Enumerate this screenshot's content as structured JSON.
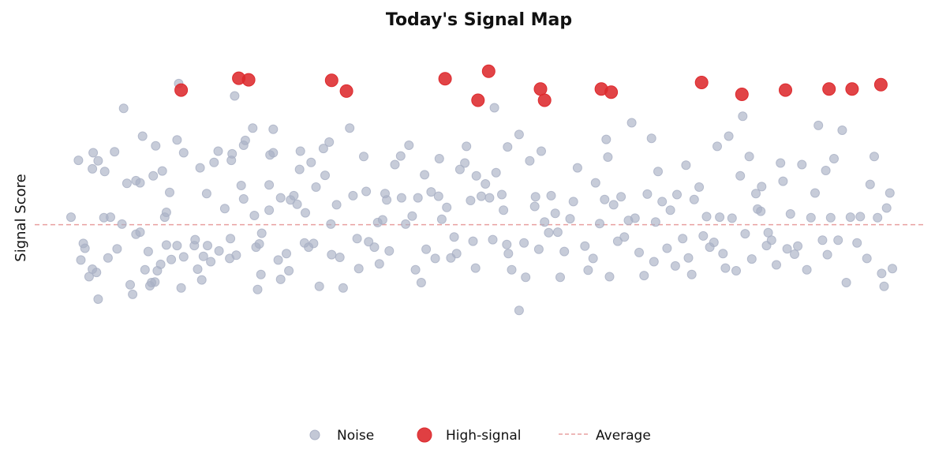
{
  "chart_data": {
    "type": "scatter",
    "title": "Today's Signal Map",
    "xlabel": "",
    "ylabel": "Signal Score",
    "xlim": [
      0,
      100
    ],
    "ylim": [
      -3.2,
      3.6
    ],
    "grid": false,
    "legend_placement": "bottom-center",
    "average": 0.0,
    "colors": {
      "noise": "#a9b0c4",
      "high_signal": "#dd2a2e",
      "average_line": "#e8a0a0"
    },
    "legend": [
      {
        "key": "noise",
        "label": "Noise"
      },
      {
        "key": "high_signal",
        "label": "High-signal"
      },
      {
        "key": "average",
        "label": "Average"
      }
    ],
    "series": [
      {
        "name": "High-signal",
        "points": [
          [
            13.4,
            2.51
          ],
          [
            20.4,
            2.73
          ],
          [
            21.6,
            2.7
          ],
          [
            31.7,
            2.69
          ],
          [
            33.5,
            2.49
          ],
          [
            45.5,
            2.72
          ],
          [
            49.5,
            2.32
          ],
          [
            50.8,
            2.86
          ],
          [
            57.1,
            2.53
          ],
          [
            57.6,
            2.32
          ],
          [
            64.5,
            2.53
          ],
          [
            65.7,
            2.47
          ],
          [
            76.7,
            2.65
          ],
          [
            81.6,
            2.43
          ],
          [
            86.9,
            2.51
          ],
          [
            92.2,
            2.53
          ],
          [
            95.0,
            2.53
          ],
          [
            98.5,
            2.61
          ]
        ]
      },
      {
        "name": "Noise",
        "points": [
          [
            0.0,
            0.14
          ],
          [
            0.9,
            1.2
          ],
          [
            1.2,
            -0.66
          ],
          [
            1.5,
            -0.35
          ],
          [
            1.7,
            -0.44
          ],
          [
            2.2,
            -0.97
          ],
          [
            2.6,
            -0.83
          ],
          [
            2.6,
            1.04
          ],
          [
            2.7,
            1.34
          ],
          [
            3.1,
            -0.89
          ],
          [
            3.3,
            1.19
          ],
          [
            3.3,
            -1.39
          ],
          [
            4.0,
            0.13
          ],
          [
            4.1,
            0.99
          ],
          [
            4.5,
            -0.62
          ],
          [
            4.8,
            0.14
          ],
          [
            5.3,
            1.36
          ],
          [
            5.6,
            -0.45
          ],
          [
            6.2,
            0.01
          ],
          [
            6.4,
            2.17
          ],
          [
            6.8,
            0.77
          ],
          [
            7.2,
            -1.12
          ],
          [
            7.5,
            -1.3
          ],
          [
            7.9,
            -0.18
          ],
          [
            7.9,
            0.82
          ],
          [
            8.4,
            0.78
          ],
          [
            8.7,
            1.65
          ],
          [
            9.0,
            -0.84
          ],
          [
            9.4,
            -0.5
          ],
          [
            9.6,
            -1.14
          ],
          [
            9.8,
            -1.08
          ],
          [
            10.0,
            0.91
          ],
          [
            10.2,
            -1.07
          ],
          [
            10.3,
            1.47
          ],
          [
            10.5,
            -0.86
          ],
          [
            10.9,
            -0.74
          ],
          [
            11.1,
            1.0
          ],
          [
            11.4,
            0.14
          ],
          [
            11.6,
            -0.38
          ],
          [
            11.6,
            0.23
          ],
          [
            12.0,
            0.6
          ],
          [
            12.2,
            -0.65
          ],
          [
            12.9,
            1.58
          ],
          [
            12.9,
            -0.39
          ],
          [
            13.1,
            2.63
          ],
          [
            13.4,
            -1.18
          ],
          [
            13.7,
            1.34
          ],
          [
            13.7,
            -0.6
          ],
          [
            15.0,
            -0.39
          ],
          [
            15.1,
            -0.28
          ],
          [
            15.4,
            -0.83
          ],
          [
            15.7,
            1.06
          ],
          [
            15.9,
            -1.03
          ],
          [
            16.1,
            -0.59
          ],
          [
            16.5,
            0.58
          ],
          [
            16.6,
            -0.39
          ],
          [
            17.0,
            -0.69
          ],
          [
            17.4,
            1.16
          ],
          [
            18.0,
            -0.49
          ],
          [
            18.7,
            0.3
          ],
          [
            19.3,
            -0.63
          ],
          [
            19.4,
            -0.26
          ],
          [
            19.5,
            1.2
          ],
          [
            19.6,
            1.32
          ],
          [
            19.9,
            2.4
          ],
          [
            20.1,
            -0.57
          ],
          [
            20.7,
            0.73
          ],
          [
            21.0,
            0.48
          ],
          [
            21.0,
            1.48
          ],
          [
            21.2,
            1.57
          ],
          [
            22.1,
            1.8
          ],
          [
            22.3,
            0.17
          ],
          [
            22.5,
            -0.42
          ],
          [
            22.7,
            -1.21
          ],
          [
            22.9,
            -0.36
          ],
          [
            23.1,
            -0.93
          ],
          [
            23.2,
            -0.16
          ],
          [
            24.1,
            0.27
          ],
          [
            24.1,
            0.74
          ],
          [
            24.2,
            1.3
          ],
          [
            24.6,
            1.78
          ],
          [
            24.6,
            1.34
          ],
          [
            25.2,
            -0.66
          ],
          [
            25.5,
            -1.02
          ],
          [
            25.5,
            0.5
          ],
          [
            26.2,
            -0.54
          ],
          [
            26.5,
            -0.86
          ],
          [
            26.7,
            0.46
          ],
          [
            27.1,
            0.54
          ],
          [
            27.5,
            0.38
          ],
          [
            27.9,
            1.37
          ],
          [
            28.4,
            -0.34
          ],
          [
            28.5,
            0.22
          ],
          [
            28.9,
            -0.42
          ],
          [
            29.2,
            1.16
          ],
          [
            29.5,
            -0.35
          ],
          [
            29.8,
            0.7
          ],
          [
            30.2,
            -1.15
          ],
          [
            30.7,
            1.42
          ],
          [
            30.9,
            0.92
          ],
          [
            31.4,
            1.54
          ],
          [
            31.6,
            0.01
          ],
          [
            31.7,
            -0.56
          ],
          [
            32.3,
            0.37
          ],
          [
            32.7,
            -0.61
          ],
          [
            33.1,
            -1.18
          ],
          [
            33.9,
            1.8
          ],
          [
            34.3,
            0.54
          ],
          [
            34.8,
            -0.26
          ],
          [
            35.0,
            -0.82
          ],
          [
            35.6,
            1.27
          ],
          [
            35.9,
            0.62
          ],
          [
            36.2,
            -0.32
          ],
          [
            37.3,
            0.04
          ],
          [
            37.5,
            -0.73
          ],
          [
            37.9,
            0.09
          ],
          [
            38.2,
            0.58
          ],
          [
            38.4,
            0.46
          ],
          [
            38.7,
            -0.49
          ],
          [
            39.4,
            1.12
          ],
          [
            40.1,
            1.28
          ],
          [
            40.2,
            0.5
          ],
          [
            40.7,
            0.01
          ],
          [
            41.1,
            1.48
          ],
          [
            41.5,
            0.16
          ],
          [
            41.9,
            -0.84
          ],
          [
            42.2,
            0.5
          ],
          [
            42.6,
            -1.08
          ],
          [
            43.0,
            0.93
          ],
          [
            43.2,
            -0.46
          ],
          [
            43.8,
            0.61
          ],
          [
            44.3,
            -0.63
          ],
          [
            44.7,
            0.53
          ],
          [
            44.8,
            1.23
          ],
          [
            45.1,
            0.1
          ],
          [
            45.7,
            0.32
          ],
          [
            46.2,
            -0.62
          ],
          [
            46.9,
            -0.54
          ],
          [
            47.3,
            1.03
          ],
          [
            47.9,
            1.15
          ],
          [
            48.1,
            1.46
          ],
          [
            48.6,
            0.45
          ],
          [
            48.9,
            -0.31
          ],
          [
            49.2,
            -0.81
          ],
          [
            49.3,
            0.91
          ],
          [
            49.9,
            0.53
          ],
          [
            50.4,
            0.76
          ],
          [
            50.9,
            0.5
          ],
          [
            51.3,
            -0.28
          ],
          [
            51.5,
            2.18
          ],
          [
            51.7,
            0.97
          ],
          [
            52.4,
            0.56
          ],
          [
            52.6,
            0.27
          ],
          [
            53.1,
            1.45
          ],
          [
            53.2,
            -0.54
          ],
          [
            53.6,
            -0.84
          ],
          [
            54.5,
            1.68
          ],
          [
            55.1,
            -0.34
          ],
          [
            55.3,
            -0.98
          ],
          [
            55.8,
            1.19
          ],
          [
            56.4,
            0.34
          ],
          [
            56.5,
            0.52
          ],
          [
            56.9,
            -0.46
          ],
          [
            57.2,
            1.37
          ],
          [
            57.6,
            0.05
          ],
          [
            58.1,
            -0.15
          ],
          [
            58.4,
            0.54
          ],
          [
            58.9,
            0.21
          ],
          [
            59.5,
            -0.98
          ],
          [
            60.0,
            -0.5
          ],
          [
            60.7,
            0.11
          ],
          [
            61.1,
            0.43
          ],
          [
            61.6,
            1.06
          ],
          [
            62.5,
            -0.4
          ],
          [
            62.9,
            -0.85
          ],
          [
            63.5,
            -0.63
          ],
          [
            63.8,
            0.78
          ],
          [
            64.3,
            0.02
          ],
          [
            64.9,
            0.47
          ],
          [
            65.1,
            1.59
          ],
          [
            65.3,
            1.26
          ],
          [
            65.5,
            -0.97
          ],
          [
            66.0,
            0.37
          ],
          [
            66.5,
            -0.31
          ],
          [
            66.9,
            0.52
          ],
          [
            67.3,
            -0.23
          ],
          [
            67.8,
            0.08
          ],
          [
            68.2,
            1.9
          ],
          [
            68.6,
            0.12
          ],
          [
            69.1,
            -0.52
          ],
          [
            69.7,
            -0.95
          ],
          [
            70.1,
            0.57
          ],
          [
            70.6,
            1.61
          ],
          [
            70.9,
            -0.69
          ],
          [
            71.4,
            0.99
          ],
          [
            71.9,
            0.43
          ],
          [
            72.5,
            -0.44
          ],
          [
            72.9,
            0.27
          ],
          [
            73.5,
            -0.77
          ],
          [
            73.7,
            0.56
          ],
          [
            74.4,
            -0.26
          ],
          [
            74.8,
            1.11
          ],
          [
            75.1,
            -0.62
          ],
          [
            75.5,
            -0.93
          ],
          [
            75.8,
            0.47
          ],
          [
            76.4,
            0.7
          ],
          [
            76.9,
            -0.21
          ],
          [
            77.3,
            0.15
          ],
          [
            77.7,
            -0.42
          ],
          [
            78.2,
            -0.33
          ],
          [
            78.6,
            1.46
          ],
          [
            78.9,
            0.14
          ],
          [
            79.3,
            -0.54
          ],
          [
            79.6,
            -0.81
          ],
          [
            80.0,
            1.65
          ],
          [
            80.4,
            0.12
          ],
          [
            80.9,
            -0.86
          ],
          [
            81.4,
            0.91
          ],
          [
            81.7,
            2.02
          ],
          [
            82.0,
            -0.17
          ],
          [
            82.5,
            1.27
          ],
          [
            82.8,
            -0.64
          ],
          [
            83.3,
            0.58
          ],
          [
            83.5,
            0.29
          ],
          [
            84.0,
            0.71
          ],
          [
            84.6,
            -0.39
          ],
          [
            84.8,
            -0.15
          ],
          [
            85.2,
            -0.29
          ],
          [
            85.8,
            -0.75
          ],
          [
            86.3,
            1.15
          ],
          [
            86.6,
            0.81
          ],
          [
            87.1,
            -0.45
          ],
          [
            87.5,
            0.2
          ],
          [
            88.0,
            -0.55
          ],
          [
            88.4,
            -0.4
          ],
          [
            88.9,
            1.12
          ],
          [
            89.5,
            -0.84
          ],
          [
            90.0,
            0.13
          ],
          [
            90.5,
            0.59
          ],
          [
            90.9,
            1.85
          ],
          [
            91.4,
            -0.29
          ],
          [
            91.8,
            1.01
          ],
          [
            92.4,
            0.13
          ],
          [
            92.8,
            1.23
          ],
          [
            93.3,
            -0.29
          ],
          [
            93.8,
            1.76
          ],
          [
            94.3,
            -1.08
          ],
          [
            94.8,
            0.14
          ],
          [
            95.6,
            -0.34
          ],
          [
            96.0,
            0.15
          ],
          [
            96.8,
            -0.63
          ],
          [
            97.2,
            0.75
          ],
          [
            97.7,
            1.27
          ],
          [
            98.1,
            0.13
          ],
          [
            98.6,
            -0.91
          ],
          [
            98.9,
            -1.15
          ],
          [
            99.2,
            0.31
          ],
          [
            99.6,
            0.59
          ],
          [
            99.9,
            -0.82
          ],
          [
            54.5,
            -1.6
          ],
          [
            53.0,
            -0.37
          ],
          [
            46.6,
            -0.23
          ],
          [
            36.9,
            -0.42
          ],
          [
            27.8,
            1.03
          ],
          [
            17.9,
            1.37
          ],
          [
            8.4,
            -0.14
          ],
          [
            59.2,
            -0.14
          ],
          [
            71.1,
            0.05
          ],
          [
            83.9,
            0.25
          ],
          [
            92.0,
            -0.56
          ]
        ]
      }
    ]
  }
}
